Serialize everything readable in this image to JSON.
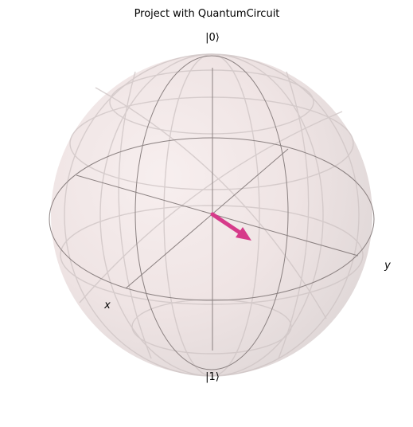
{
  "title": "Project with QuantumCircuit",
  "labels": {
    "ket0": "|0⟩",
    "ket1": "|1⟩",
    "x_axis": "x",
    "y_axis": "y"
  },
  "state_vector": {
    "color": "#d63a8a",
    "theta_deg": 90,
    "phi_deg": 61
  },
  "colors": {
    "sphere_fill": "#efe2e2",
    "wire": "#8a8080",
    "grid": "#c9c0c0",
    "vector": "#d63a8a"
  }
}
